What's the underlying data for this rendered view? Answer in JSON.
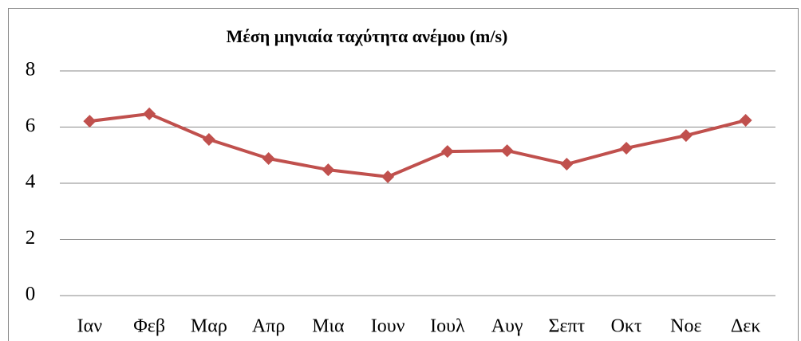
{
  "chart_data": {
    "type": "line",
    "title": "Μέση μηνιαία ταχύτητα ανέμου (m/s)",
    "categories": [
      "Ιαν",
      "Φεβ",
      "Μαρ",
      "Απρ",
      "Μια",
      "Ιουν",
      "Ιουλ",
      "Αυγ",
      "Σεπτ",
      "Οκτ",
      "Νοε",
      "Δεκ"
    ],
    "series": [
      {
        "name": "Μέση μηνιαία ταχύτητα ανέμου (m/s)",
        "color": "#c0504d",
        "values": [
          6.21,
          6.47,
          5.56,
          4.88,
          4.48,
          4.23,
          5.13,
          5.16,
          4.68,
          5.25,
          5.7,
          6.24
        ]
      }
    ],
    "ylim": [
      0,
      8
    ],
    "yticks": [
      0,
      2,
      4,
      6,
      8
    ],
    "grid": true
  }
}
